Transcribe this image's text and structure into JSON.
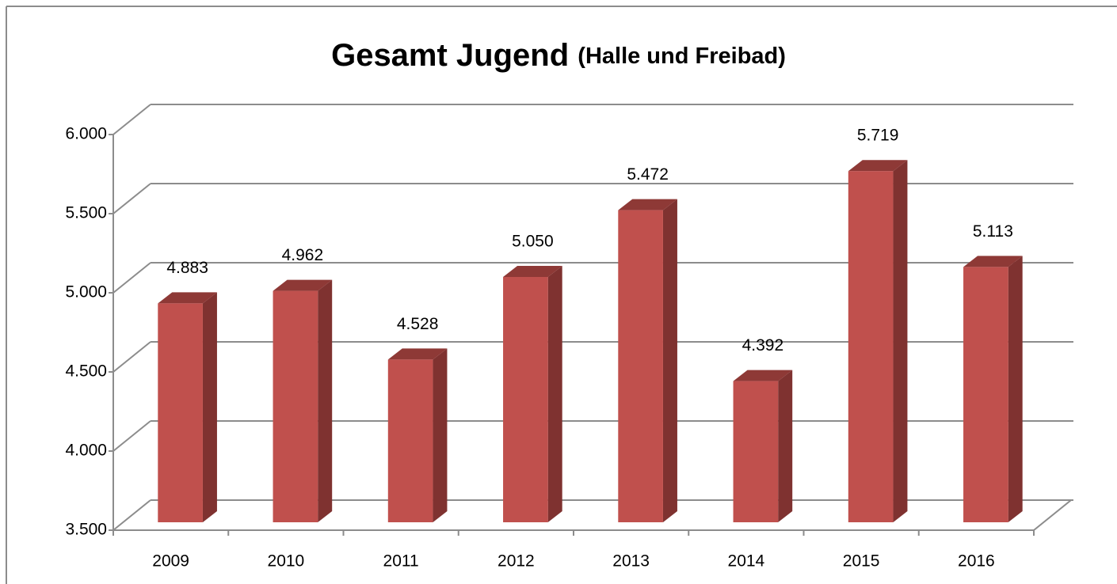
{
  "chart_data": {
    "type": "bar3d",
    "title": "Gesamt Jugend",
    "subtitle": "(Halle und Freibad)",
    "categories": [
      "2009",
      "2010",
      "2011",
      "2012",
      "2013",
      "2014",
      "2015",
      "2016"
    ],
    "values": [
      4883,
      4962,
      4528,
      5050,
      5472,
      4392,
      5719,
      5113
    ],
    "value_labels": [
      "4.883",
      "4.962",
      "4.528",
      "5.050",
      "5.472",
      "4.392",
      "5.719",
      "5.113"
    ],
    "color": "#c0504d",
    "ylim": [
      3500,
      6000
    ],
    "yticks": [
      {
        "value": 3500,
        "label": "3.500"
      },
      {
        "value": 4000,
        "label": "4.000"
      },
      {
        "value": 4500,
        "label": "4.500"
      },
      {
        "value": 5000,
        "label": "5.000"
      },
      {
        "value": 5500,
        "label": "5.500"
      },
      {
        "value": 6000,
        "label": "6.000"
      }
    ],
    "grid": true
  }
}
